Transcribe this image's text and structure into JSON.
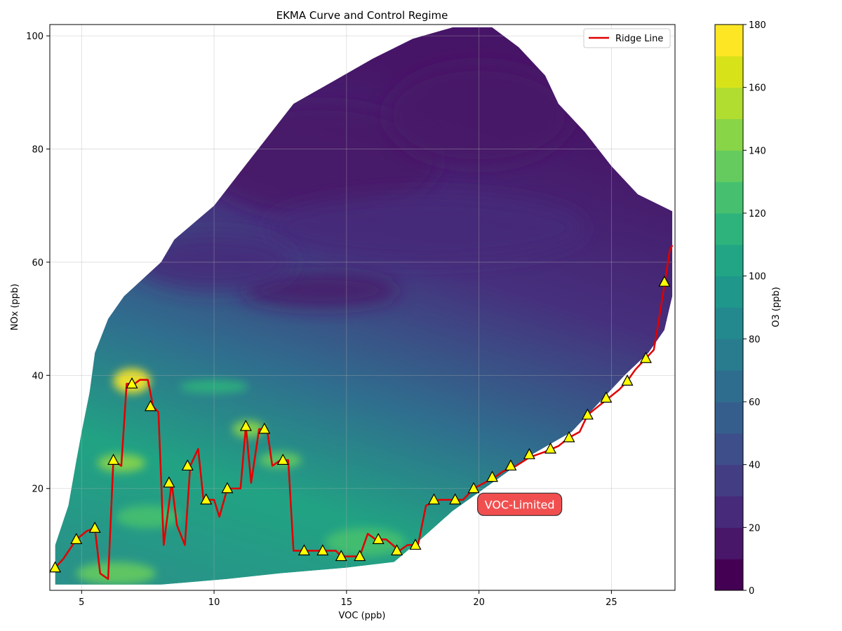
{
  "chart_data": {
    "type": "contour",
    "title": "EKMA Curve and Control Regime",
    "xlabel": "VOC (ppb)",
    "ylabel": "NOx (ppb)",
    "xlim": [
      3.8,
      27.4
    ],
    "ylim": [
      2,
      102
    ],
    "xticks": [
      5,
      10,
      15,
      20,
      25
    ],
    "yticks": [
      20,
      40,
      60,
      80,
      100
    ],
    "grid": true,
    "legend_position": "top-right",
    "colorbar": {
      "label": "O3 (ppb)",
      "range": [
        0,
        180
      ],
      "ticks": [
        0,
        20,
        40,
        60,
        80,
        100,
        120,
        140,
        160,
        180
      ],
      "levels": [
        "#440154",
        "#481769",
        "#472a7a",
        "#433d84",
        "#3d4e8a",
        "#355e8d",
        "#2e6d8e",
        "#297b8e",
        "#23898e",
        "#1f978b",
        "#21a585",
        "#2eb37c",
        "#46c06f",
        "#65cb5e",
        "#89d548",
        "#b0dd2f",
        "#d8e219",
        "#fde725"
      ]
    },
    "surface_region": [
      [
        4,
        3
      ],
      [
        4,
        10
      ],
      [
        4.5,
        17
      ],
      [
        4.8,
        25
      ],
      [
        5,
        30
      ],
      [
        5.3,
        37
      ],
      [
        5.5,
        44
      ],
      [
        6,
        50
      ],
      [
        6.6,
        54
      ],
      [
        8,
        60
      ],
      [
        8.5,
        64
      ],
      [
        10,
        70
      ],
      [
        11,
        76
      ],
      [
        12,
        82
      ],
      [
        13,
        88
      ],
      [
        14.5,
        92
      ],
      [
        16,
        96
      ],
      [
        17.5,
        99.5
      ],
      [
        19,
        101.5
      ],
      [
        20.5,
        101.5
      ],
      [
        21.5,
        98
      ],
      [
        22.5,
        93
      ],
      [
        23,
        88
      ],
      [
        24,
        83
      ],
      [
        25,
        77
      ],
      [
        26,
        72
      ],
      [
        27.3,
        69
      ],
      [
        27.3,
        54
      ],
      [
        27,
        48
      ],
      [
        26.4,
        44
      ],
      [
        25.5,
        40
      ],
      [
        24.5,
        35
      ],
      [
        23.5,
        30
      ],
      [
        22,
        26
      ],
      [
        20.5,
        21
      ],
      [
        19,
        16
      ],
      [
        17.8,
        11
      ],
      [
        16.8,
        7
      ],
      [
        15,
        6
      ],
      [
        12.5,
        5
      ],
      [
        10.5,
        4
      ],
      [
        8,
        3
      ]
    ],
    "low_zones": [
      {
        "center": [
          14,
          78
        ],
        "rx": 4.5,
        "ry": 10,
        "value": 12
      },
      {
        "center": [
          20,
          86
        ],
        "rx": 3.5,
        "ry": 9,
        "value": 10
      },
      {
        "center": [
          18,
          66
        ],
        "rx": 6,
        "ry": 6,
        "value": 22
      },
      {
        "center": [
          14,
          55
        ],
        "rx": 3,
        "ry": 3,
        "value": 18
      },
      {
        "center": [
          10,
          60
        ],
        "rx": 3,
        "ry": 5,
        "value": 25
      }
    ],
    "high_zones": [
      {
        "center": [
          6.9,
          39
        ],
        "rx": 0.7,
        "ry": 2.2,
        "value": 175
      },
      {
        "center": [
          6.5,
          24.5
        ],
        "rx": 0.9,
        "ry": 1.6,
        "value": 140
      },
      {
        "center": [
          11.3,
          30.5
        ],
        "rx": 0.6,
        "ry": 1.5,
        "value": 140
      },
      {
        "center": [
          12.5,
          25
        ],
        "rx": 0.8,
        "ry": 1.4,
        "value": 135
      },
      {
        "center": [
          15.7,
          10.5
        ],
        "rx": 1.5,
        "ry": 2.5,
        "value": 120
      },
      {
        "center": [
          7.5,
          15
        ],
        "rx": 1.2,
        "ry": 2,
        "value": 125
      },
      {
        "center": [
          6.3,
          5
        ],
        "rx": 1.5,
        "ry": 2,
        "value": 130
      },
      {
        "center": [
          10,
          38
        ],
        "rx": 1.3,
        "ry": 1.2,
        "value": 110
      }
    ],
    "series": [
      {
        "name": "Ridge Line",
        "color": "#e00000",
        "type": "line",
        "points": [
          [
            4,
            6
          ],
          [
            4.3,
            7.5
          ],
          [
            4.8,
            11
          ],
          [
            5.2,
            12.5
          ],
          [
            5.5,
            13
          ],
          [
            5.7,
            5
          ],
          [
            6,
            4
          ],
          [
            6.2,
            25
          ],
          [
            6.5,
            24
          ],
          [
            6.7,
            38.5
          ],
          [
            7,
            38.5
          ],
          [
            7.2,
            39.2
          ],
          [
            7.5,
            39.2
          ],
          [
            7.7,
            34.5
          ],
          [
            7.9,
            33.5
          ],
          [
            8.1,
            10
          ],
          [
            8.4,
            21
          ],
          [
            8.6,
            13.5
          ],
          [
            8.9,
            10
          ],
          [
            9.1,
            24
          ],
          [
            9.4,
            27
          ],
          [
            9.6,
            18
          ],
          [
            10,
            18
          ],
          [
            10.2,
            15
          ],
          [
            10.5,
            20
          ],
          [
            11,
            20
          ],
          [
            11.2,
            31
          ],
          [
            11.4,
            21
          ],
          [
            11.7,
            30.5
          ],
          [
            12,
            30.5
          ],
          [
            12.2,
            24
          ],
          [
            12.5,
            25
          ],
          [
            12.8,
            25
          ],
          [
            13,
            9
          ],
          [
            14,
            9
          ],
          [
            14.6,
            9
          ],
          [
            14.8,
            8
          ],
          [
            15.5,
            8
          ],
          [
            15.8,
            12
          ],
          [
            16.1,
            11
          ],
          [
            16.5,
            11
          ],
          [
            17,
            9
          ],
          [
            17.3,
            10
          ],
          [
            17.7,
            10
          ],
          [
            18,
            17
          ],
          [
            18.5,
            18
          ],
          [
            19.4,
            18
          ],
          [
            19.8,
            20
          ],
          [
            20.2,
            21
          ],
          [
            20.6,
            22
          ],
          [
            20.9,
            23
          ],
          [
            21.4,
            24
          ],
          [
            21.9,
            25.5
          ],
          [
            22.5,
            26.5
          ],
          [
            23,
            27.5
          ],
          [
            23.4,
            29
          ],
          [
            23.8,
            30
          ],
          [
            24.1,
            33
          ],
          [
            24.5,
            34.5
          ],
          [
            24.9,
            36
          ],
          [
            25.3,
            37.5
          ],
          [
            25.6,
            39
          ],
          [
            25.9,
            41
          ],
          [
            26.4,
            43.5
          ],
          [
            26.6,
            44.5
          ],
          [
            26.8,
            50
          ],
          [
            27,
            56
          ],
          [
            27.2,
            62
          ],
          [
            27.3,
            63
          ]
        ]
      }
    ],
    "markers": [
      [
        4,
        6
      ],
      [
        4.8,
        11
      ],
      [
        5.5,
        13
      ],
      [
        6.2,
        25
      ],
      [
        6.9,
        38.5
      ],
      [
        7.6,
        34.5
      ],
      [
        8.3,
        21
      ],
      [
        9,
        24
      ],
      [
        9.7,
        18
      ],
      [
        10.5,
        20
      ],
      [
        11.2,
        31
      ],
      [
        11.9,
        30.5
      ],
      [
        12.6,
        25
      ],
      [
        13.4,
        9
      ],
      [
        14.1,
        9
      ],
      [
        14.8,
        8
      ],
      [
        15.5,
        8
      ],
      [
        16.2,
        11
      ],
      [
        16.9,
        9
      ],
      [
        17.6,
        10
      ],
      [
        18.3,
        18
      ],
      [
        19.1,
        18
      ],
      [
        19.8,
        20
      ],
      [
        20.5,
        22
      ],
      [
        21.2,
        24
      ],
      [
        21.9,
        26
      ],
      [
        22.7,
        27
      ],
      [
        23.4,
        29
      ],
      [
        24.1,
        33
      ],
      [
        24.8,
        36
      ],
      [
        25.6,
        39
      ],
      [
        26.3,
        43
      ],
      [
        27,
        56.5
      ]
    ],
    "annotations": [
      {
        "text": "VOC-Limited",
        "x": 20.0,
        "y": 17.2,
        "box_color": "#f04040"
      }
    ]
  }
}
